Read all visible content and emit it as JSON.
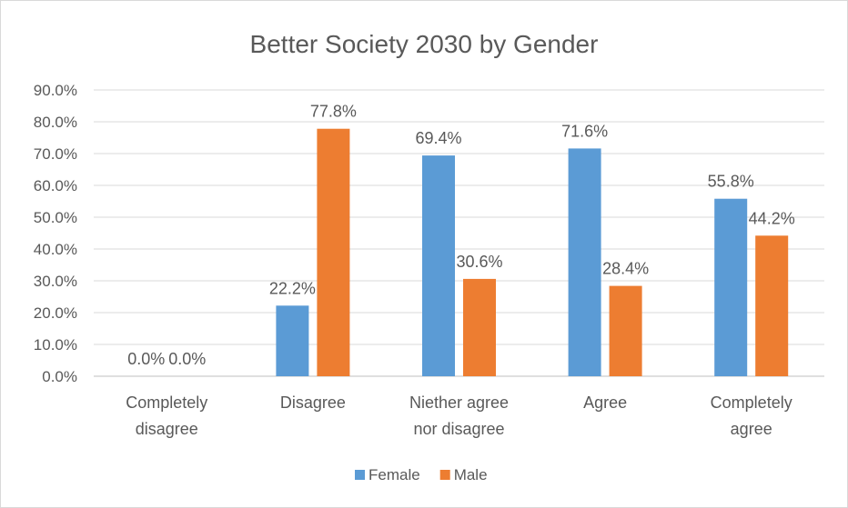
{
  "chart_data": {
    "type": "bar",
    "title": "Better Society 2030 by Gender",
    "categories": [
      [
        "Completely",
        "disagree"
      ],
      [
        "Disagree"
      ],
      [
        "Niether agree",
        "nor disagree"
      ],
      [
        "Agree"
      ],
      [
        "Completely",
        "agree"
      ]
    ],
    "series": [
      {
        "name": "Female",
        "color": "#5b9bd5",
        "values": [
          0.0,
          22.2,
          69.4,
          71.6,
          55.8
        ],
        "labels": [
          "0.0%",
          "22.2%",
          "69.4%",
          "71.6%",
          "55.8%"
        ]
      },
      {
        "name": "Male",
        "color": "#ed7d31",
        "values": [
          0.0,
          77.8,
          30.6,
          28.4,
          44.2
        ],
        "labels": [
          "0.0%",
          "77.8%",
          "30.6%",
          "28.4%",
          "44.2%"
        ]
      }
    ],
    "ylim": [
      0,
      90
    ],
    "yticks": [
      "0.0%",
      "10.0%",
      "20.0%",
      "30.0%",
      "40.0%",
      "50.0%",
      "60.0%",
      "70.0%",
      "80.0%",
      "90.0%"
    ],
    "grid": true,
    "legend": "bottom-center"
  }
}
